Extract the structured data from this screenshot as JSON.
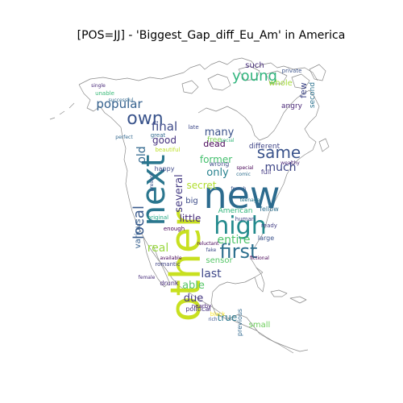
{
  "title": "[POS=JJ] - 'Biggest_Gap_diff_Eu_Am' in America",
  "colors": {
    "background": "#ffffff",
    "outline": "#8a8a8a"
  },
  "words": [
    {
      "text": "other",
      "color": "#c8e020"
    },
    {
      "text": "new",
      "color": "#2c6b8e"
    },
    {
      "text": "next",
      "color": "#2a768e"
    },
    {
      "text": "high",
      "color": "#238a8d"
    },
    {
      "text": "first",
      "color": "#2d708e"
    },
    {
      "text": "own",
      "color": "#3a548c"
    },
    {
      "text": "same",
      "color": "#3a538b"
    },
    {
      "text": "young",
      "color": "#2fb47c"
    },
    {
      "text": "popular",
      "color": "#34608d"
    },
    {
      "text": "local",
      "color": "#38598c"
    },
    {
      "text": "final",
      "color": "#3e4a89"
    },
    {
      "text": "good",
      "color": "#46327e"
    },
    {
      "text": "last",
      "color": "#3f4889"
    },
    {
      "text": "able",
      "color": "#56c667"
    },
    {
      "text": "much",
      "color": "#3f4788"
    },
    {
      "text": "several",
      "color": "#443a83"
    },
    {
      "text": "old",
      "color": "#31688e"
    },
    {
      "text": "many",
      "color": "#3b528b"
    },
    {
      "text": "real",
      "color": "#98d83e"
    },
    {
      "text": "entire",
      "color": "#4ec36b"
    },
    {
      "text": "little",
      "color": "#472c7a"
    },
    {
      "text": "American",
      "color": "#31b57b"
    },
    {
      "text": "due",
      "color": "#453781"
    },
    {
      "text": "true",
      "color": "#2a788e"
    },
    {
      "text": "former",
      "color": "#46c06f"
    },
    {
      "text": "secret",
      "color": "#b0dd2f"
    },
    {
      "text": "big",
      "color": "#3d4d8a"
    },
    {
      "text": "only",
      "color": "#26818e"
    },
    {
      "text": "small",
      "color": "#6ccd5a"
    },
    {
      "text": "various",
      "color": "#355f8d"
    },
    {
      "text": "few",
      "color": "#3f4788"
    },
    {
      "text": "second",
      "color": "#2c728e"
    },
    {
      "text": "dead",
      "color": "#440154"
    },
    {
      "text": "free",
      "color": "#7ad151"
    },
    {
      "text": "sensor",
      "color": "#56c667"
    },
    {
      "text": "different",
      "color": "#404588"
    },
    {
      "text": "large",
      "color": "#3b528b"
    },
    {
      "text": "full",
      "color": "#443983"
    },
    {
      "text": "wrong",
      "color": "#3d4e8a"
    },
    {
      "text": "whole",
      "color": "#a2da37"
    },
    {
      "text": "such",
      "color": "#472d7b"
    },
    {
      "text": "angry",
      "color": "#482576"
    },
    {
      "text": "previous",
      "color": "#31688e"
    },
    {
      "text": "fellow",
      "color": "#2e6f8e"
    },
    {
      "text": "ready",
      "color": "#433e85"
    },
    {
      "text": "romantic",
      "color": "#414487"
    },
    {
      "text": "enough",
      "color": "#440154"
    },
    {
      "text": "happy",
      "color": "#3e4989"
    },
    {
      "text": "drunk",
      "color": "#472a7a"
    },
    {
      "text": "political",
      "color": "#46337f"
    },
    {
      "text": "nearby",
      "color": "#482475"
    },
    {
      "text": "human",
      "color": "#414487"
    },
    {
      "text": "original",
      "color": "#22a884"
    },
    {
      "text": "beautiful",
      "color": "#bddf26"
    },
    {
      "text": "private",
      "color": "#3b528b"
    },
    {
      "text": "special",
      "color": "#440154"
    },
    {
      "text": "black",
      "color": "#fde725"
    },
    {
      "text": "great",
      "color": "#31688e"
    },
    {
      "text": "unable",
      "color": "#38b977"
    },
    {
      "text": "successful",
      "color": "#31688e"
    },
    {
      "text": "single",
      "color": "#482878"
    },
    {
      "text": "late",
      "color": "#3e4989"
    },
    {
      "text": "comic",
      "color": "#2e6e8e"
    },
    {
      "text": "wealthy",
      "color": "#482475"
    },
    {
      "text": "french",
      "color": "#3b528b"
    },
    {
      "text": "fictional",
      "color": "#440154"
    },
    {
      "text": "female",
      "color": "#472c7a"
    },
    {
      "text": "rich",
      "color": "#3b528b"
    },
    {
      "text": "reluctant",
      "color": "#440154"
    },
    {
      "text": "fake",
      "color": "#3e4a89"
    },
    {
      "text": "social",
      "color": "#35b779"
    },
    {
      "text": "present",
      "color": "#3b528b"
    },
    {
      "text": "perfect",
      "color": "#31688e"
    },
    {
      "text": "teenage",
      "color": "#2a788e"
    },
    {
      "text": "available",
      "color": "#440154"
    }
  ]
}
